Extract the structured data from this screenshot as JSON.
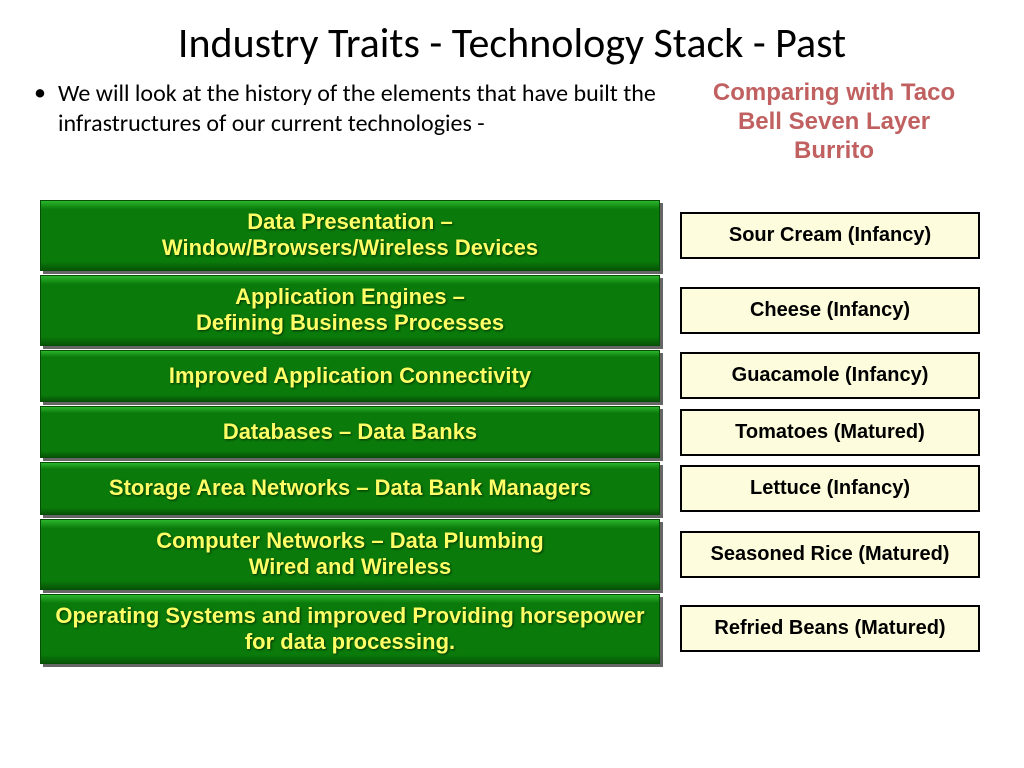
{
  "title": "Industry Traits - Technology Stack - Past",
  "bullet": "We will look at the history of the elements that have built the infrastructures of our current technologies -",
  "compare_heading": "Comparing with Taco Bell Seven Layer Burrito",
  "colors": {
    "green_gradient_top": "#2bb52b",
    "green_gradient_mid": "#0a7a0a",
    "green_gradient_bot": "#065506",
    "green_text": "#ffff66",
    "cream_bg": "#fdfcdc",
    "cream_border": "#000000",
    "compare_text": "#c06060"
  },
  "layers": [
    {
      "green": "Data Presentation –\nWindow/Browsers/Wireless Devices",
      "cream": "Sour Cream (Infancy)",
      "two_line": true
    },
    {
      "green": "Application Engines –\nDefining Business Processes",
      "cream": "Cheese (Infancy)",
      "two_line": true
    },
    {
      "green": "Improved Application Connectivity",
      "cream": "Guacamole (Infancy)",
      "two_line": false
    },
    {
      "green": "Databases – Data Banks",
      "cream": "Tomatoes (Matured)",
      "two_line": false
    },
    {
      "green": "Storage Area Networks – Data Bank Managers",
      "cream": "Lettuce (Infancy)",
      "two_line": false
    },
    {
      "green": "Computer Networks – Data Plumbing\nWired and Wireless",
      "cream": "Seasoned Rice (Matured)",
      "two_line": true
    },
    {
      "green": "Operating Systems and improved  Providing horsepower for data processing.",
      "cream": "Refried Beans (Matured)",
      "two_line": true
    }
  ]
}
